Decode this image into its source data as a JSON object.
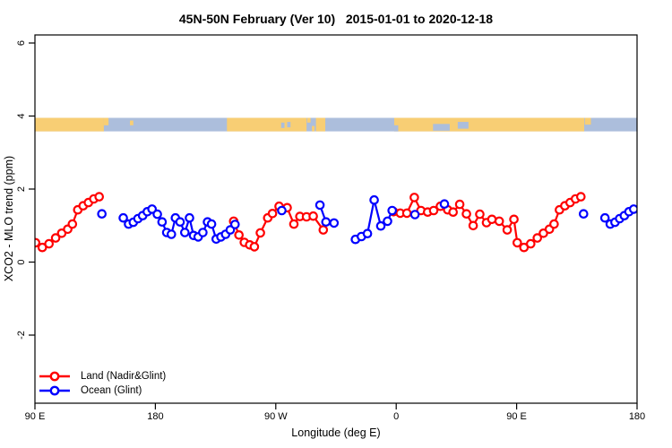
{
  "title": "45N-50N February (Ver 10)   2015-01-01 to 2020-12-18",
  "axes": {
    "x": {
      "label": "Longitude (deg E)",
      "ticks": [
        {
          "deg": 0,
          "label": "90 E"
        },
        {
          "deg": 90,
          "label": "180"
        },
        {
          "deg": 180,
          "label": "90 W"
        },
        {
          "deg": 270,
          "label": "0"
        },
        {
          "deg": 360,
          "label": "90 E"
        },
        {
          "deg": 450,
          "label": "180"
        }
      ]
    },
    "y": {
      "label": "XCO2 - MLO trend (ppm)",
      "ticks": [
        {
          "v": 6,
          "label": "6"
        },
        {
          "v": 4,
          "label": "4"
        },
        {
          "v": 2,
          "label": "2"
        },
        {
          "v": 0,
          "label": "0"
        },
        {
          "v": -2,
          "label": "-2"
        }
      ]
    }
  },
  "legend": {
    "items": [
      {
        "label": "Land (Nadir&Glint)",
        "color": "#FF0000"
      },
      {
        "label": "Ocean (Glint)",
        "color": "#0000FF"
      }
    ]
  },
  "map_band": {
    "description": "45N-50N latitude strip map: land/ocean along the longitude axis",
    "y_range_ppm": [
      3.58,
      3.95
    ],
    "land_color": "#F8CE74",
    "ocean_color": "#ACBEDC",
    "base": "ocean",
    "land_segments_deg": [
      [
        0,
        51.5
      ],
      [
        143.5,
        203
      ],
      [
        210,
        217
      ],
      [
        268.5,
        410.5
      ]
    ],
    "detail": [
      {
        "range": [
          51.5,
          55
        ],
        "color": "land",
        "frac": [
          0.0,
          0.55
        ]
      },
      {
        "range": [
          71,
          73.5
        ],
        "color": "land",
        "frac": [
          0.2,
          0.55
        ]
      },
      {
        "range": [
          184,
          186.5
        ],
        "color": "ocean",
        "frac": [
          0.35,
          0.75
        ]
      },
      {
        "range": [
          188.5,
          191
        ],
        "color": "ocean",
        "frac": [
          0.3,
          0.7
        ]
      },
      {
        "range": [
          203.5,
          206
        ],
        "color": "land",
        "frac": [
          0.0,
          0.35
        ]
      },
      {
        "range": [
          207,
          209
        ],
        "color": "land",
        "frac": [
          0.6,
          1.0
        ]
      },
      {
        "range": [
          268.5,
          271.5
        ],
        "color": "ocean",
        "frac": [
          0.55,
          1.0
        ]
      },
      {
        "range": [
          297.5,
          310
        ],
        "color": "ocean",
        "frac": [
          0.45,
          0.95
        ]
      },
      {
        "range": [
          316,
          324
        ],
        "color": "ocean",
        "frac": [
          0.3,
          0.8
        ]
      },
      {
        "range": [
          411,
          415.5
        ],
        "color": "land",
        "frac": [
          0.0,
          0.5
        ]
      }
    ]
  },
  "chart_data": {
    "type": "line-scatter",
    "title": "45N-50N February (Ver 10)   2015-01-01 to 2020-12-18",
    "xlabel": "Longitude (deg E)",
    "ylabel": "XCO2 - MLO trend (ppm)",
    "x_axis_note": "x axis spans 450 deg wrapping east from 90E: 90E→180→90W→0→90E→180; points with lon 90E..180 are drawn twice",
    "xlim_deg": [
      0,
      450
    ],
    "ylim": [
      -4,
      6.25
    ],
    "grid": false,
    "legend_position": "bottom-left",
    "series": [
      {
        "name": "Land (Nadir&Glint)",
        "color": "#FF0000",
        "points": [
          [
            90.5,
            0.53
          ],
          [
            95.5,
            0.4
          ],
          [
            100.5,
            0.5
          ],
          [
            105.5,
            0.66
          ],
          [
            110,
            0.79
          ],
          [
            114.5,
            0.9
          ],
          [
            118,
            1.04
          ],
          [
            122,
            1.43
          ],
          [
            126,
            1.54
          ],
          [
            130,
            1.63
          ],
          [
            134,
            1.73
          ],
          [
            138,
            1.79
          ],
          [
            -121.5,
            1.12
          ],
          [
            -117.5,
            0.74
          ],
          [
            -113.5,
            0.54
          ],
          [
            -109.5,
            0.47
          ],
          [
            -106,
            0.42
          ],
          [
            -101.5,
            0.8
          ],
          [
            -96,
            1.21
          ],
          [
            -92.5,
            1.33
          ],
          [
            -87.5,
            1.53
          ],
          [
            -81.5,
            1.49
          ],
          [
            -76.5,
            1.04
          ],
          [
            -72,
            1.25
          ],
          [
            -67,
            1.24
          ],
          [
            -62,
            1.26
          ],
          [
            -54.5,
            0.88
          ],
          [
            -2,
            1.38
          ],
          [
            3,
            1.34
          ],
          [
            8,
            1.34
          ],
          [
            13.5,
            1.77
          ],
          [
            18.5,
            1.41
          ],
          [
            23.5,
            1.37
          ],
          [
            28,
            1.41
          ],
          [
            33,
            1.53
          ],
          [
            38.5,
            1.43
          ],
          [
            42.5,
            1.37
          ],
          [
            47.5,
            1.58
          ],
          [
            52.5,
            1.32
          ],
          [
            57.5,
            1.0
          ],
          [
            62.5,
            1.31
          ],
          [
            67.5,
            1.08
          ],
          [
            71.5,
            1.17
          ],
          [
            77,
            1.12
          ],
          [
            83,
            0.88
          ],
          [
            88,
            1.17
          ]
        ]
      },
      {
        "name": "Ocean (Glint)",
        "color": "#0000FF",
        "points": [
          [
            140,
            1.32
          ],
          [
            156,
            1.21
          ],
          [
            160,
            1.04
          ],
          [
            163.5,
            1.09
          ],
          [
            167,
            1.19
          ],
          [
            170.5,
            1.27
          ],
          [
            174,
            1.38
          ],
          [
            177.5,
            1.45
          ],
          [
            -178.5,
            1.31
          ],
          [
            -175,
            1.1
          ],
          [
            -171.5,
            0.81
          ],
          [
            -168,
            0.76
          ],
          [
            -165,
            1.21
          ],
          [
            -161.5,
            1.1
          ],
          [
            -158,
            0.81
          ],
          [
            -154.5,
            1.21
          ],
          [
            -151.5,
            0.73
          ],
          [
            -148,
            0.69
          ],
          [
            -144.5,
            0.81
          ],
          [
            -141,
            1.1
          ],
          [
            -138,
            1.04
          ],
          [
            -134.5,
            0.63
          ],
          [
            -131,
            0.69
          ],
          [
            -127.5,
            0.76
          ],
          [
            -124,
            0.88
          ],
          [
            -120.5,
            1.03
          ],
          [
            -85.5,
            1.41
          ],
          [
            -57,
            1.56
          ],
          [
            -52.5,
            1.1
          ],
          [
            -46.5,
            1.07
          ],
          [
            -30.5,
            0.62
          ],
          [
            -26,
            0.7
          ],
          [
            -21.5,
            0.78
          ],
          [
            -16.5,
            1.7
          ],
          [
            -11.5,
            0.99
          ],
          [
            -6.5,
            1.12
          ],
          [
            -3,
            1.41
          ],
          [
            14,
            1.3
          ],
          [
            36,
            1.59
          ]
        ]
      }
    ]
  }
}
